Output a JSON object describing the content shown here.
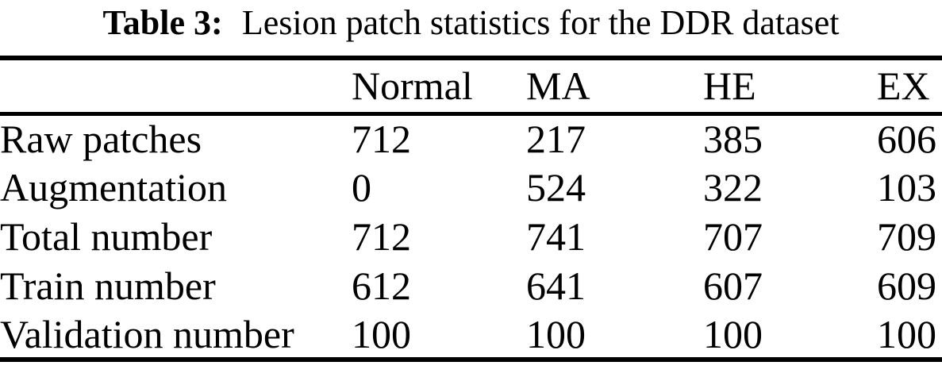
{
  "caption": {
    "label": "Table 3:",
    "text": "Lesion patch statistics for the DDR dataset"
  },
  "table": {
    "column_headers": {
      "row_label": "",
      "normal": "Normal",
      "ma": "MA",
      "he": "HE",
      "ex": "EX"
    },
    "rows": [
      {
        "label": "Raw patches",
        "values": [
          "712",
          "217",
          "385",
          "606"
        ]
      },
      {
        "label": "Augmentation",
        "values": [
          "0",
          "524",
          "322",
          "103"
        ]
      },
      {
        "label": "Total number",
        "values": [
          "712",
          "741",
          "707",
          "709"
        ]
      },
      {
        "label": "Train number",
        "values": [
          "612",
          "641",
          "607",
          "609"
        ]
      },
      {
        "label": "Validation number",
        "values": [
          "100",
          "100",
          "100",
          "100"
        ]
      }
    ]
  },
  "colors": {
    "text": "#000000",
    "background": "#ffffff",
    "rule": "#000000"
  }
}
